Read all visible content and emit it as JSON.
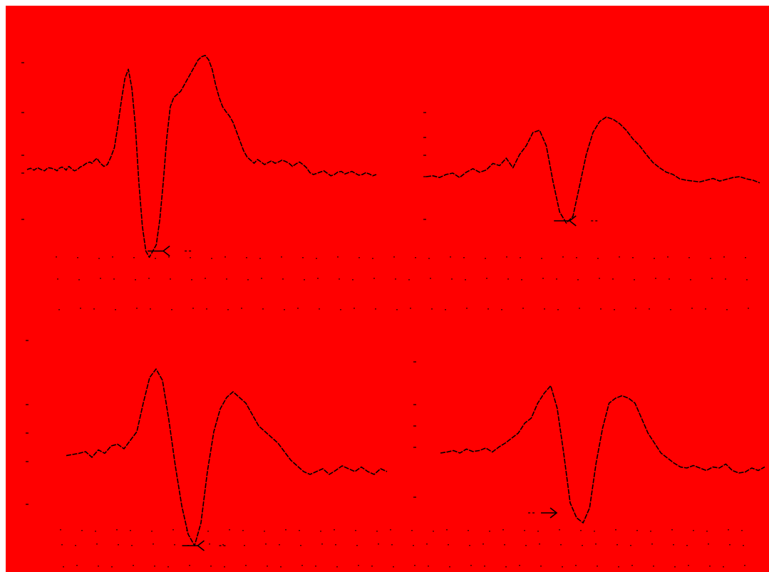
{
  "chart_data": [
    {
      "type": "line",
      "panel": "top-left",
      "series": [
        {
          "x": [
            0,
            5,
            10,
            15,
            20,
            25,
            30,
            35,
            40,
            43,
            46,
            50,
            53,
            56,
            58,
            60,
            62,
            65,
            68,
            72,
            76,
            80,
            85,
            90,
            93,
            96,
            100,
            105,
            110,
            115,
            120,
            125,
            130,
            135,
            140,
            145,
            150,
            155,
            160,
            165,
            170,
            175,
            180,
            185,
            190,
            195,
            200,
            205,
            210,
            215,
            220,
            225,
            230,
            235,
            240,
            245,
            250,
            255,
            260,
            265,
            270,
            275,
            280,
            285,
            290,
            295,
            300,
            305,
            310,
            315,
            320,
            325,
            330,
            335,
            340,
            345,
            350,
            355,
            360,
            365,
            370,
            375,
            380,
            385,
            390,
            395,
            400,
            405,
            410,
            415,
            420,
            425,
            430,
            435,
            440,
            445,
            450,
            455,
            460,
            465,
            470,
            475,
            480,
            485,
            490,
            495,
            500
          ],
          "y": [
            0.0,
            0.02,
            -0.01,
            0.03,
            0.0,
            -0.02,
            0.03,
            0.02,
            0.0,
            -0.02,
            0.02,
            0.04,
            0.02,
            -0.01,
            0.03,
            0.05,
            0.03,
            0.0,
            -0.02,
            0.0,
            0.04,
            0.06,
            0.1,
            0.12,
            0.1,
            0.14,
            0.18,
            0.1,
            0.05,
            0.08,
            0.2,
            0.35,
            0.7,
            1.1,
            1.45,
            1.6,
            1.3,
            0.7,
            -0.2,
            -0.9,
            -1.3,
            -1.4,
            -1.3,
            -1.2,
            -0.8,
            -0.2,
            0.5,
            1.0,
            1.15,
            1.2,
            1.25,
            1.35,
            1.45,
            1.55,
            1.65,
            1.75,
            1.8,
            1.82,
            1.75,
            1.6,
            1.35,
            1.15,
            1.0,
            0.92,
            0.85,
            0.75,
            0.6,
            0.45,
            0.3,
            0.2,
            0.15,
            0.1,
            0.16,
            0.12,
            0.08,
            0.11,
            0.14,
            0.1,
            0.12,
            0.15,
            0.13,
            0.1,
            0.05,
            0.09,
            0.12,
            0.08,
            0.03,
            -0.05,
            -0.08,
            -0.06,
            -0.04,
            -0.02,
            -0.06,
            -0.1,
            -0.08,
            -0.04,
            -0.03,
            -0.07,
            -0.05,
            -0.03,
            -0.06,
            -0.09,
            -0.08,
            -0.05,
            -0.07,
            -0.1,
            -0.08
          ]
        }
      ],
      "markers": [
        {
          "direction": "left",
          "x": 195,
          "y": -1.3
        }
      ]
    },
    {
      "type": "line",
      "panel": "top-right",
      "series": [
        {
          "x": [
            0,
            10,
            20,
            30,
            40,
            50,
            60,
            70,
            80,
            90,
            100,
            110,
            120,
            130,
            140,
            150,
            160,
            170,
            180,
            190,
            200,
            210,
            220,
            230,
            240,
            250,
            260,
            270,
            280,
            290,
            300,
            310,
            320,
            330,
            340,
            350,
            360,
            370,
            380,
            390,
            400,
            410,
            420,
            430,
            440,
            450,
            460,
            470,
            480,
            490,
            500
          ],
          "y": [
            0.0,
            0.02,
            -0.02,
            0.05,
            0.08,
            -0.02,
            0.1,
            0.18,
            0.1,
            0.15,
            0.3,
            0.25,
            0.42,
            0.2,
            0.5,
            0.7,
            1.0,
            1.05,
            0.7,
            -0.1,
            -0.8,
            -1.05,
            -0.9,
            -0.2,
            0.5,
            1.0,
            1.25,
            1.35,
            1.3,
            1.2,
            1.05,
            0.85,
            0.7,
            0.5,
            0.32,
            0.2,
            0.1,
            0.05,
            -0.05,
            -0.08,
            -0.1,
            -0.12,
            -0.08,
            -0.04,
            -0.1,
            -0.06,
            -0.02,
            0.0,
            -0.05,
            -0.08,
            -0.14
          ]
        }
      ],
      "markers": [
        {
          "direction": "left",
          "x": 215,
          "y": -1.0
        }
      ]
    },
    {
      "type": "line",
      "panel": "bottom-left",
      "series": [
        {
          "x": [
            0,
            10,
            20,
            30,
            40,
            50,
            60,
            70,
            80,
            90,
            100,
            110,
            120,
            130,
            140,
            150,
            160,
            170,
            180,
            190,
            200,
            210,
            220,
            230,
            240,
            250,
            260,
            270,
            280,
            290,
            300,
            310,
            320,
            330,
            340,
            350,
            360,
            370,
            380,
            390,
            400,
            410,
            420,
            430,
            440,
            450,
            460,
            470,
            480,
            490,
            500
          ],
          "y": [
            -0.02,
            0.0,
            0.02,
            0.05,
            -0.05,
            0.08,
            0.02,
            0.15,
            0.18,
            0.1,
            0.25,
            0.4,
            0.9,
            1.35,
            1.5,
            1.3,
            0.6,
            -0.2,
            -0.9,
            -1.4,
            -1.6,
            -1.2,
            -0.3,
            0.4,
            0.8,
            1.0,
            1.1,
            1.0,
            0.9,
            0.7,
            0.5,
            0.4,
            0.3,
            0.2,
            0.05,
            -0.1,
            -0.2,
            -0.3,
            -0.35,
            -0.3,
            -0.25,
            -0.35,
            -0.28,
            -0.2,
            -0.25,
            -0.3,
            -0.22,
            -0.3,
            -0.35,
            -0.25,
            -0.3
          ]
        }
      ],
      "markers": [
        {
          "direction": "left",
          "x": 205,
          "y": -1.6
        }
      ]
    },
    {
      "type": "line",
      "panel": "bottom-right",
      "series": [
        {
          "x": [
            0,
            10,
            20,
            30,
            40,
            50,
            60,
            70,
            80,
            90,
            100,
            110,
            120,
            130,
            140,
            150,
            160,
            170,
            180,
            190,
            200,
            210,
            220,
            230,
            240,
            250,
            260,
            270,
            280,
            290,
            300,
            310,
            320,
            330,
            340,
            350,
            360,
            370,
            380,
            390,
            400,
            410,
            420,
            430,
            440,
            450,
            460,
            470,
            480,
            490,
            500
          ],
          "y": [
            0.0,
            0.02,
            0.05,
            0.0,
            0.08,
            0.03,
            0.05,
            0.1,
            0.02,
            0.12,
            0.2,
            0.3,
            0.4,
            0.6,
            0.7,
            1.0,
            1.2,
            1.35,
            0.9,
            0.0,
            -1.0,
            -1.3,
            -1.4,
            -1.1,
            -0.2,
            0.5,
            1.0,
            1.1,
            1.15,
            1.1,
            1.0,
            0.7,
            0.4,
            0.2,
            0.0,
            -0.1,
            -0.2,
            -0.28,
            -0.3,
            -0.25,
            -0.3,
            -0.35,
            -0.28,
            -0.3,
            -0.22,
            -0.35,
            -0.4,
            -0.38,
            -0.3,
            -0.35,
            -0.28
          ]
        }
      ],
      "markers": [
        {
          "direction": "right",
          "x": 155,
          "y": -1.2
        }
      ]
    }
  ]
}
